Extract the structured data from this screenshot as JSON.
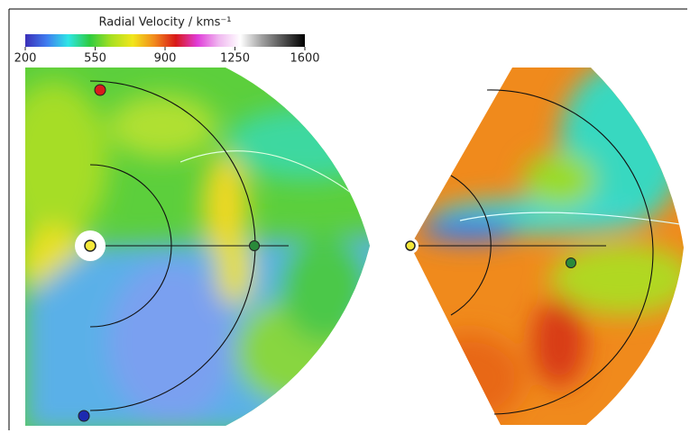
{
  "chart_data": {
    "type": "colorbar",
    "title": "Radial Velocity / kms⁻¹",
    "clim": [
      200,
      1600
    ],
    "cticks": [
      200,
      550,
      900,
      1250,
      1600
    ],
    "colormap": [
      "#3b2fb8",
      "#3f7df0",
      "#2ee6e6",
      "#2ecc40",
      "#a8e020",
      "#f2e61c",
      "#f28a1c",
      "#d81818",
      "#e03cd8",
      "#f0b8f0",
      "#ffffff",
      "#a0a0a0",
      "#505050",
      "#000000"
    ]
  }
}
